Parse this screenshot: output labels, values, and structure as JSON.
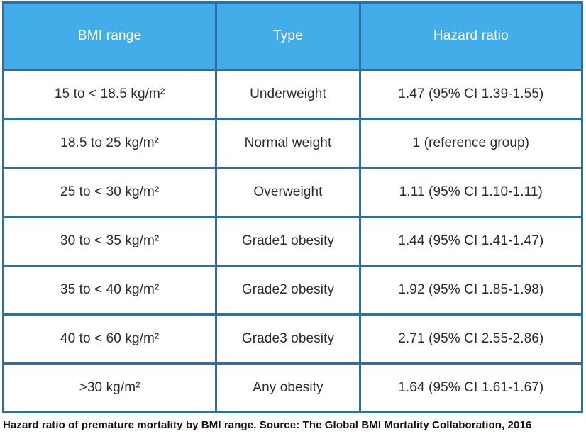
{
  "table": {
    "headers": [
      "BMI range",
      "Type",
      "Hazard ratio"
    ],
    "rows": [
      {
        "bmi_range": "15 to < 18.5 kg/m²",
        "type": "Underweight",
        "hazard_ratio": "1.47 (95% CI 1.39-1.55)"
      },
      {
        "bmi_range": "18.5 to 25 kg/m²",
        "type": "Normal weight",
        "hazard_ratio": "1 (reference group)"
      },
      {
        "bmi_range": "25 to < 30 kg/m²",
        "type": "Overweight",
        "hazard_ratio": "1.11 (95% CI 1.10-1.11)"
      },
      {
        "bmi_range": "30 to < 35 kg/m²",
        "type": "Grade1 obesity",
        "hazard_ratio": "1.44 (95% CI 1.41-1.47)"
      },
      {
        "bmi_range": "35 to < 40 kg/m²",
        "type": "Grade2 obesity",
        "hazard_ratio": "1.92 (95% CI 1.85-1.98)"
      },
      {
        "bmi_range": "40 to < 60 kg/m²",
        "type": "Grade3 obesity",
        "hazard_ratio": "2.71 (95% CI 2.55-2.86)"
      },
      {
        "bmi_range": ">30 kg/m²",
        "type": "Any obesity",
        "hazard_ratio": "1.64 (95% CI 1.61-1.67)"
      }
    ]
  },
  "caption": "Hazard ratio of premature mortality by BMI range. Source: The Global BMI Mortality Collaboration, 2016",
  "colors": {
    "header_bg": "#42ade9",
    "border": "#2d6fa5",
    "header_text": "#ffffff",
    "cell_text": "#2b2b2b"
  },
  "chart_data": {
    "type": "table",
    "title": "Hazard ratio of premature mortality by BMI range",
    "source": "The Global BMI Mortality Collaboration, 2016",
    "columns": [
      "BMI range",
      "Type",
      "Hazard ratio"
    ],
    "categories": [
      "Underweight",
      "Normal weight",
      "Overweight",
      "Grade1 obesity",
      "Grade2 obesity",
      "Grade3 obesity",
      "Any obesity"
    ],
    "bmi_ranges": [
      "15 to < 18.5 kg/m²",
      "18.5 to 25 kg/m²",
      "25 to < 30 kg/m²",
      "30 to < 35 kg/m²",
      "35 to < 40 kg/m²",
      "40 to < 60 kg/m²",
      ">30 kg/m²"
    ],
    "hazard_ratio_values": [
      1.47,
      1,
      1.11,
      1.44,
      1.92,
      2.71,
      1.64
    ],
    "ci_95_low": [
      1.39,
      null,
      1.1,
      1.41,
      1.85,
      2.55,
      1.61
    ],
    "ci_95_high": [
      1.55,
      null,
      1.11,
      1.47,
      1.98,
      2.86,
      1.67
    ],
    "reference_group": "Normal weight"
  }
}
